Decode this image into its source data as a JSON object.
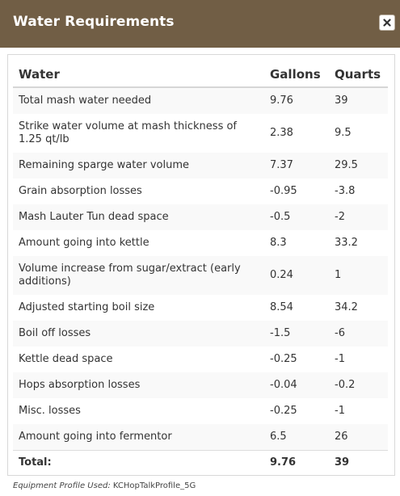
{
  "dialog": {
    "title": "Water Requirements",
    "close_icon": "close-icon"
  },
  "table": {
    "headers": [
      "Water",
      "Gallons",
      "Quarts"
    ],
    "rows": [
      {
        "label": "Total mash water needed",
        "gallons": "9.76",
        "quarts": "39"
      },
      {
        "label": "Strike water volume at mash thickness of 1.25 qt/lb",
        "gallons": "2.38",
        "quarts": "9.5"
      },
      {
        "label": "Remaining sparge water volume",
        "gallons": "7.37",
        "quarts": "29.5"
      },
      {
        "label": "Grain absorption losses",
        "gallons": "-0.95",
        "quarts": "-3.8"
      },
      {
        "label": "Mash Lauter Tun dead space",
        "gallons": "-0.5",
        "quarts": "-2"
      },
      {
        "label": "Amount going into kettle",
        "gallons": "8.3",
        "quarts": "33.2"
      },
      {
        "label": "Volume increase from sugar/extract (early additions)",
        "gallons": "0.24",
        "quarts": "1"
      },
      {
        "label": "Adjusted starting boil size",
        "gallons": "8.54",
        "quarts": "34.2"
      },
      {
        "label": "Boil off losses",
        "gallons": "-1.5",
        "quarts": "-6"
      },
      {
        "label": "Kettle dead space",
        "gallons": "-0.25",
        "quarts": "-1"
      },
      {
        "label": "Hops absorption losses",
        "gallons": "-0.04",
        "quarts": "-0.2"
      },
      {
        "label": "Misc. losses",
        "gallons": "-0.25",
        "quarts": "-1"
      },
      {
        "label": "Amount going into fermentor",
        "gallons": "6.5",
        "quarts": "26"
      }
    ],
    "total": {
      "label": "Total:",
      "gallons": "9.76",
      "quarts": "39"
    }
  },
  "footer": {
    "label": "Equipment Profile Used:",
    "value": "KCHopTalkProfile_5G"
  },
  "colors": {
    "titlebar": "#715e45",
    "title_text": "#ffffff",
    "row_stripe": "#f9f9f9"
  }
}
